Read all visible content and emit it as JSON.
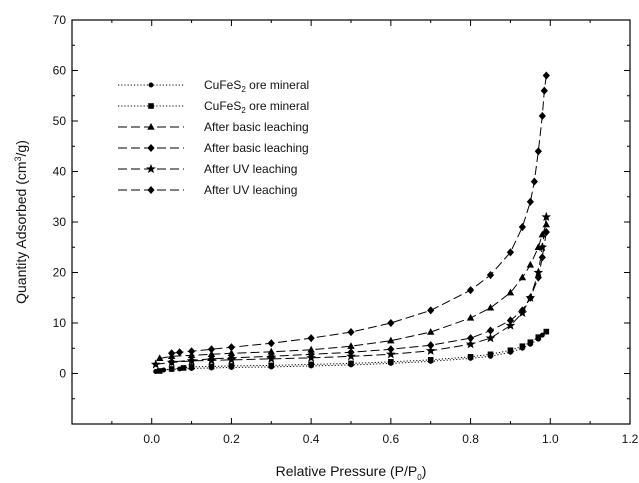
{
  "chart_data": {
    "type": "line",
    "xlabel": {
      "main": "Relative Pressure (P/P",
      "sub": "0",
      "close": ")"
    },
    "ylabel": {
      "main": "Quantity Adsorbed (cm",
      "sup": "3",
      "tail": "/g)"
    },
    "xlim": [
      -0.2,
      1.2
    ],
    "ylim": [
      -10,
      70
    ],
    "xticks": [
      {
        "value": 0.0,
        "label": "0.0"
      },
      {
        "value": 0.2,
        "label": "0.2"
      },
      {
        "value": 0.4,
        "label": "0.4"
      },
      {
        "value": 0.6,
        "label": "0.6"
      },
      {
        "value": 0.8,
        "label": "0.8"
      },
      {
        "value": 1.0,
        "label": "1.0"
      },
      {
        "value": 1.2,
        "label": "1.2"
      }
    ],
    "yticks": [
      {
        "value": 0,
        "label": "0"
      },
      {
        "value": 10,
        "label": "10"
      },
      {
        "value": 20,
        "label": "20"
      },
      {
        "value": 30,
        "label": "30"
      },
      {
        "value": 40,
        "label": "40"
      },
      {
        "value": 50,
        "label": "50"
      },
      {
        "value": 60,
        "label": "60"
      },
      {
        "value": 70,
        "label": "70"
      }
    ],
    "grid": false,
    "legend_position": "top-left",
    "series": [
      {
        "label_parts": [
          "CuFeS",
          "2",
          " ore mineral"
        ],
        "marker": "circle",
        "dash": "dotted",
        "points": [
          [
            0.01,
            0.4
          ],
          [
            0.03,
            0.7
          ],
          [
            0.05,
            0.8
          ],
          [
            0.07,
            0.9
          ],
          [
            0.1,
            1.0
          ],
          [
            0.15,
            1.1
          ],
          [
            0.2,
            1.2
          ],
          [
            0.3,
            1.3
          ],
          [
            0.4,
            1.5
          ],
          [
            0.5,
            1.7
          ],
          [
            0.6,
            2.0
          ],
          [
            0.7,
            2.4
          ],
          [
            0.8,
            3.0
          ],
          [
            0.85,
            3.4
          ],
          [
            0.9,
            4.2
          ],
          [
            0.93,
            5.0
          ],
          [
            0.95,
            5.8
          ],
          [
            0.97,
            6.8
          ],
          [
            0.98,
            7.6
          ],
          [
            0.99,
            8.2
          ]
        ]
      },
      {
        "label_parts": [
          "CuFeS",
          "2",
          " ore mineral"
        ],
        "marker": "square",
        "dash": "dotted",
        "points": [
          [
            0.99,
            8.3
          ],
          [
            0.97,
            7.2
          ],
          [
            0.95,
            6.2
          ],
          [
            0.93,
            5.4
          ],
          [
            0.9,
            4.6
          ],
          [
            0.85,
            3.8
          ],
          [
            0.8,
            3.3
          ],
          [
            0.7,
            2.7
          ],
          [
            0.6,
            2.3
          ],
          [
            0.5,
            2.0
          ],
          [
            0.4,
            1.8
          ],
          [
            0.3,
            1.6
          ],
          [
            0.2,
            1.5
          ],
          [
            0.15,
            1.4
          ],
          [
            0.1,
            1.3
          ],
          [
            0.08,
            1.1
          ],
          [
            0.05,
            0.9
          ],
          [
            0.02,
            0.5
          ]
        ]
      },
      {
        "label_parts": [
          "After basic leaching"
        ],
        "marker": "triangle",
        "dash": "long",
        "points": [
          [
            0.02,
            3.0
          ],
          [
            0.05,
            3.4
          ],
          [
            0.1,
            3.6
          ],
          [
            0.15,
            3.8
          ],
          [
            0.2,
            4.0
          ],
          [
            0.3,
            4.3
          ],
          [
            0.4,
            4.7
          ],
          [
            0.5,
            5.4
          ],
          [
            0.6,
            6.5
          ],
          [
            0.7,
            8.2
          ],
          [
            0.8,
            11.0
          ],
          [
            0.85,
            13.0
          ],
          [
            0.9,
            16.0
          ],
          [
            0.93,
            19.0
          ],
          [
            0.95,
            21.5
          ],
          [
            0.97,
            25.0
          ],
          [
            0.98,
            27.5
          ],
          [
            0.99,
            29.5
          ]
        ]
      },
      {
        "label_parts": [
          "After basic leaching"
        ],
        "marker": "diamond",
        "dash": "long",
        "points": [
          [
            0.99,
            59.0
          ],
          [
            0.985,
            56.0
          ],
          [
            0.98,
            51.0
          ],
          [
            0.97,
            44.0
          ],
          [
            0.96,
            38.0
          ],
          [
            0.95,
            34.0
          ],
          [
            0.93,
            29.0
          ],
          [
            0.9,
            24.0
          ],
          [
            0.85,
            19.5
          ],
          [
            0.8,
            16.5
          ],
          [
            0.7,
            12.5
          ],
          [
            0.6,
            10.0
          ],
          [
            0.5,
            8.2
          ],
          [
            0.4,
            7.0
          ],
          [
            0.3,
            6.0
          ],
          [
            0.2,
            5.2
          ],
          [
            0.15,
            4.8
          ],
          [
            0.1,
            4.4
          ],
          [
            0.07,
            4.2
          ],
          [
            0.05,
            4.0
          ]
        ]
      },
      {
        "label_parts": [
          "After UV leaching"
        ],
        "marker": "star",
        "dash": "long",
        "points": [
          [
            0.01,
            1.8
          ],
          [
            0.05,
            2.2
          ],
          [
            0.1,
            2.5
          ],
          [
            0.15,
            2.6
          ],
          [
            0.2,
            2.7
          ],
          [
            0.3,
            2.9
          ],
          [
            0.4,
            3.1
          ],
          [
            0.5,
            3.4
          ],
          [
            0.6,
            3.8
          ],
          [
            0.7,
            4.5
          ],
          [
            0.8,
            5.8
          ],
          [
            0.85,
            7.0
          ],
          [
            0.9,
            9.5
          ],
          [
            0.93,
            12.0
          ],
          [
            0.95,
            15.0
          ],
          [
            0.97,
            20.0
          ],
          [
            0.98,
            25.0
          ],
          [
            0.99,
            31.0
          ]
        ]
      },
      {
        "label_parts": [
          "After UV leaching"
        ],
        "marker": "diamond",
        "dash": "long",
        "points": [
          [
            0.99,
            28.0
          ],
          [
            0.98,
            23.0
          ],
          [
            0.97,
            19.0
          ],
          [
            0.95,
            15.0
          ],
          [
            0.93,
            12.5
          ],
          [
            0.9,
            10.5
          ],
          [
            0.85,
            8.5
          ],
          [
            0.8,
            7.0
          ],
          [
            0.7,
            5.6
          ],
          [
            0.6,
            4.8
          ],
          [
            0.5,
            4.2
          ],
          [
            0.4,
            3.8
          ],
          [
            0.3,
            3.4
          ],
          [
            0.2,
            3.1
          ],
          [
            0.15,
            2.9
          ],
          [
            0.1,
            2.6
          ],
          [
            0.05,
            2.3
          ]
        ]
      }
    ]
  }
}
